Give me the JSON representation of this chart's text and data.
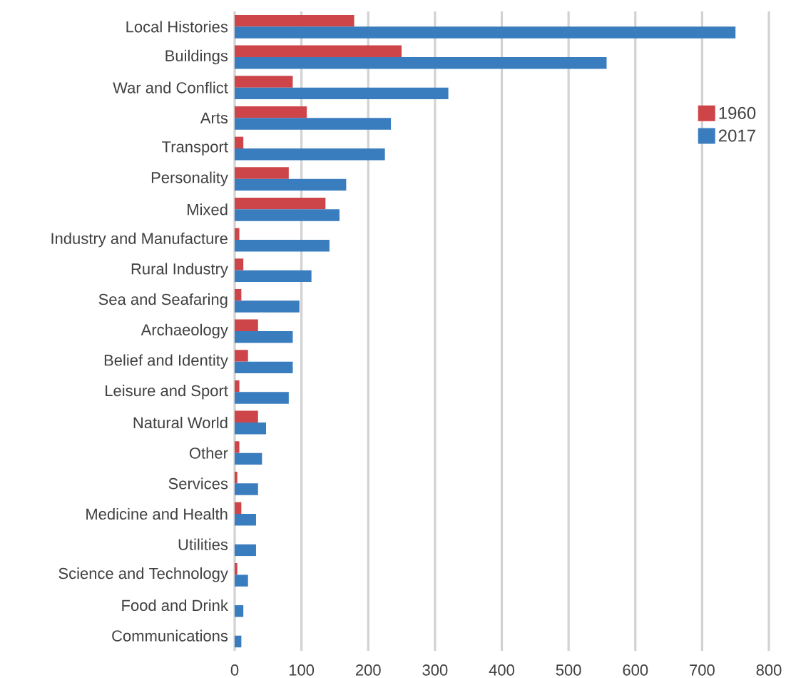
{
  "chart_data": {
    "type": "bar",
    "orientation": "horizontal",
    "categories": [
      "Local Histories",
      "Buildings",
      "War and Conflict",
      "Arts",
      "Transport",
      "Personality",
      "Mixed",
      "Industry and Manufacture",
      "Rural Industry",
      "Sea and Seafaring",
      "Archaeology",
      "Belief and Identity",
      "Leisure and Sport",
      "Natural World",
      "Other",
      "Services",
      "Medicine and Health",
      "Utilities",
      "Science and Technology",
      "Food and Drink",
      "Communications"
    ],
    "series": [
      {
        "name": "1960",
        "color": "#cd4548",
        "values": [
          179,
          250,
          87,
          108,
          13,
          81,
          136,
          7,
          13,
          10,
          35,
          20,
          7,
          35,
          7,
          4,
          10,
          0,
          4,
          0,
          0
        ]
      },
      {
        "name": "2017",
        "color": "#3a7dbf",
        "values": [
          750,
          557,
          320,
          234,
          225,
          167,
          157,
          142,
          115,
          97,
          87,
          87,
          81,
          47,
          41,
          35,
          32,
          32,
          20,
          13,
          10
        ]
      }
    ],
    "xlim": [
      0,
      800
    ],
    "xticks": [
      0,
      100,
      200,
      300,
      400,
      500,
      600,
      700,
      800
    ],
    "grid": "x",
    "legend": "top right"
  }
}
